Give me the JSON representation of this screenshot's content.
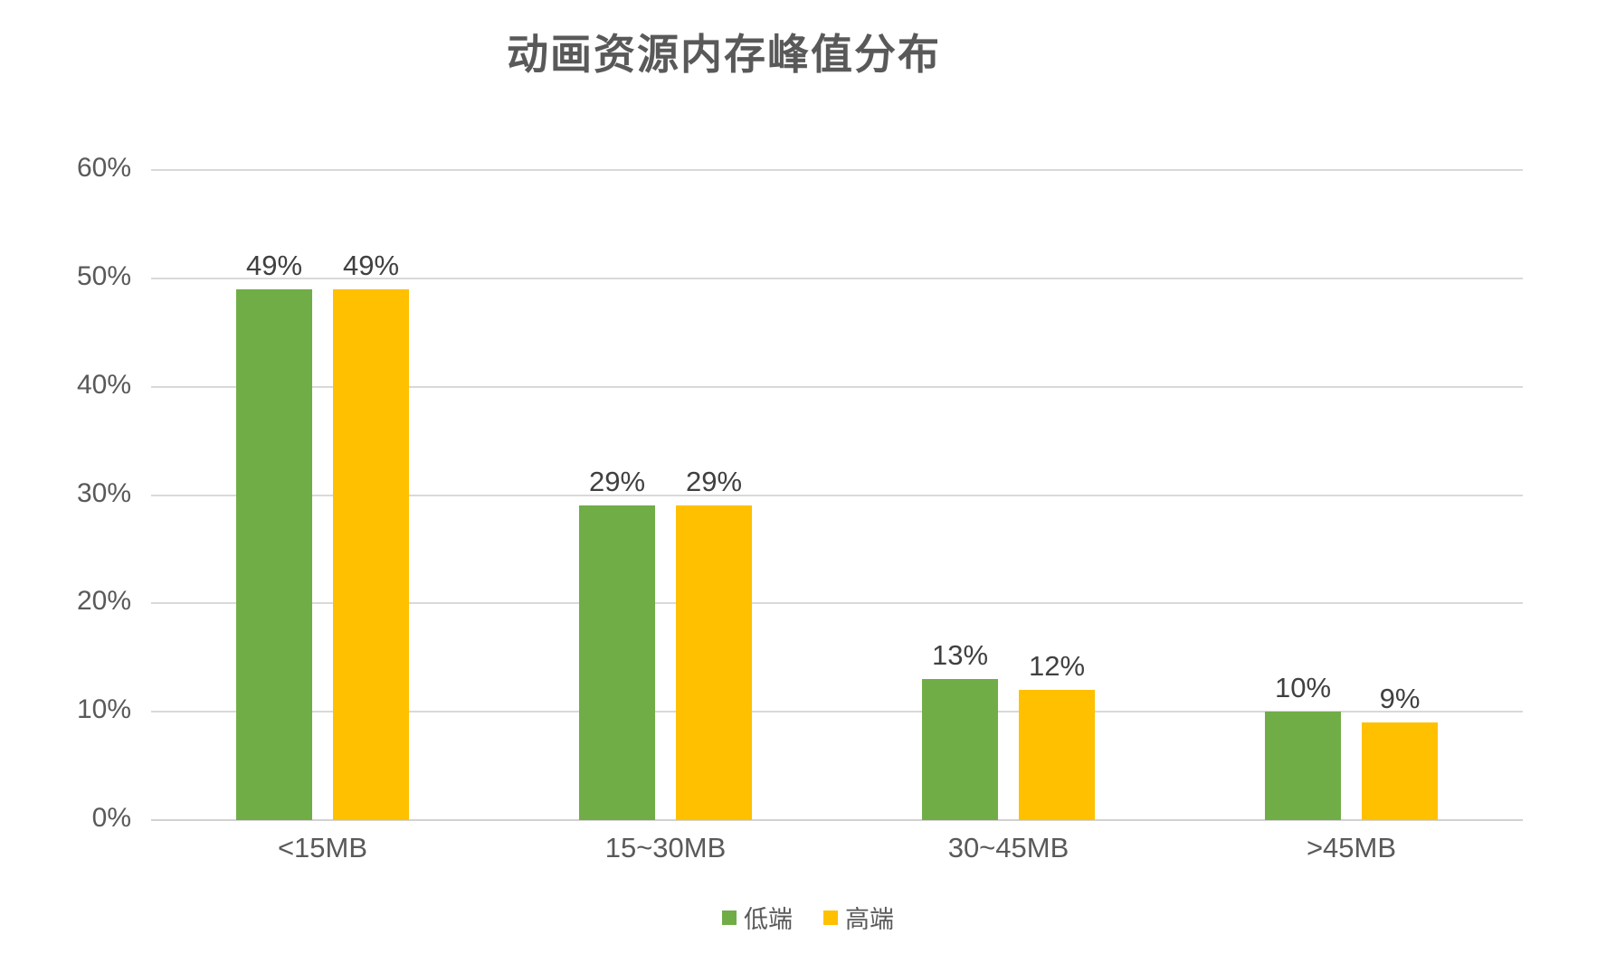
{
  "title": "动画资源内存峰值分布",
  "chart_data": {
    "type": "bar",
    "title": "动画资源内存峰值分布",
    "categories": [
      "<15MB",
      "15~30MB",
      "30~45MB",
      ">45MB"
    ],
    "series": [
      {
        "name": "低端",
        "color": "#70AD47",
        "values": [
          49,
          29,
          13,
          10
        ],
        "labels": [
          "49%",
          "29%",
          "13%",
          "10%"
        ]
      },
      {
        "name": "高端",
        "color": "#FFC000",
        "values": [
          49,
          29,
          12,
          9
        ],
        "labels": [
          "49%",
          "29%",
          "12%",
          "9%"
        ]
      }
    ],
    "ylabel": "",
    "xlabel": "",
    "ylim": [
      0,
      60
    ],
    "yticks": [
      "0%",
      "10%",
      "20%",
      "30%",
      "40%",
      "50%",
      "60%"
    ],
    "grid": true,
    "legend_position": "bottom"
  },
  "legend": {
    "items": [
      {
        "label": "低端",
        "color": "#70AD47"
      },
      {
        "label": "高端",
        "color": "#FFC000"
      }
    ]
  },
  "colors": {
    "series_low_end": "#70AD47",
    "series_high_end": "#FFC000",
    "gridline": "#d9d9d9",
    "axis_text": "#595959",
    "data_label_text": "#404040",
    "title_text": "#595959",
    "background": "#ffffff"
  }
}
